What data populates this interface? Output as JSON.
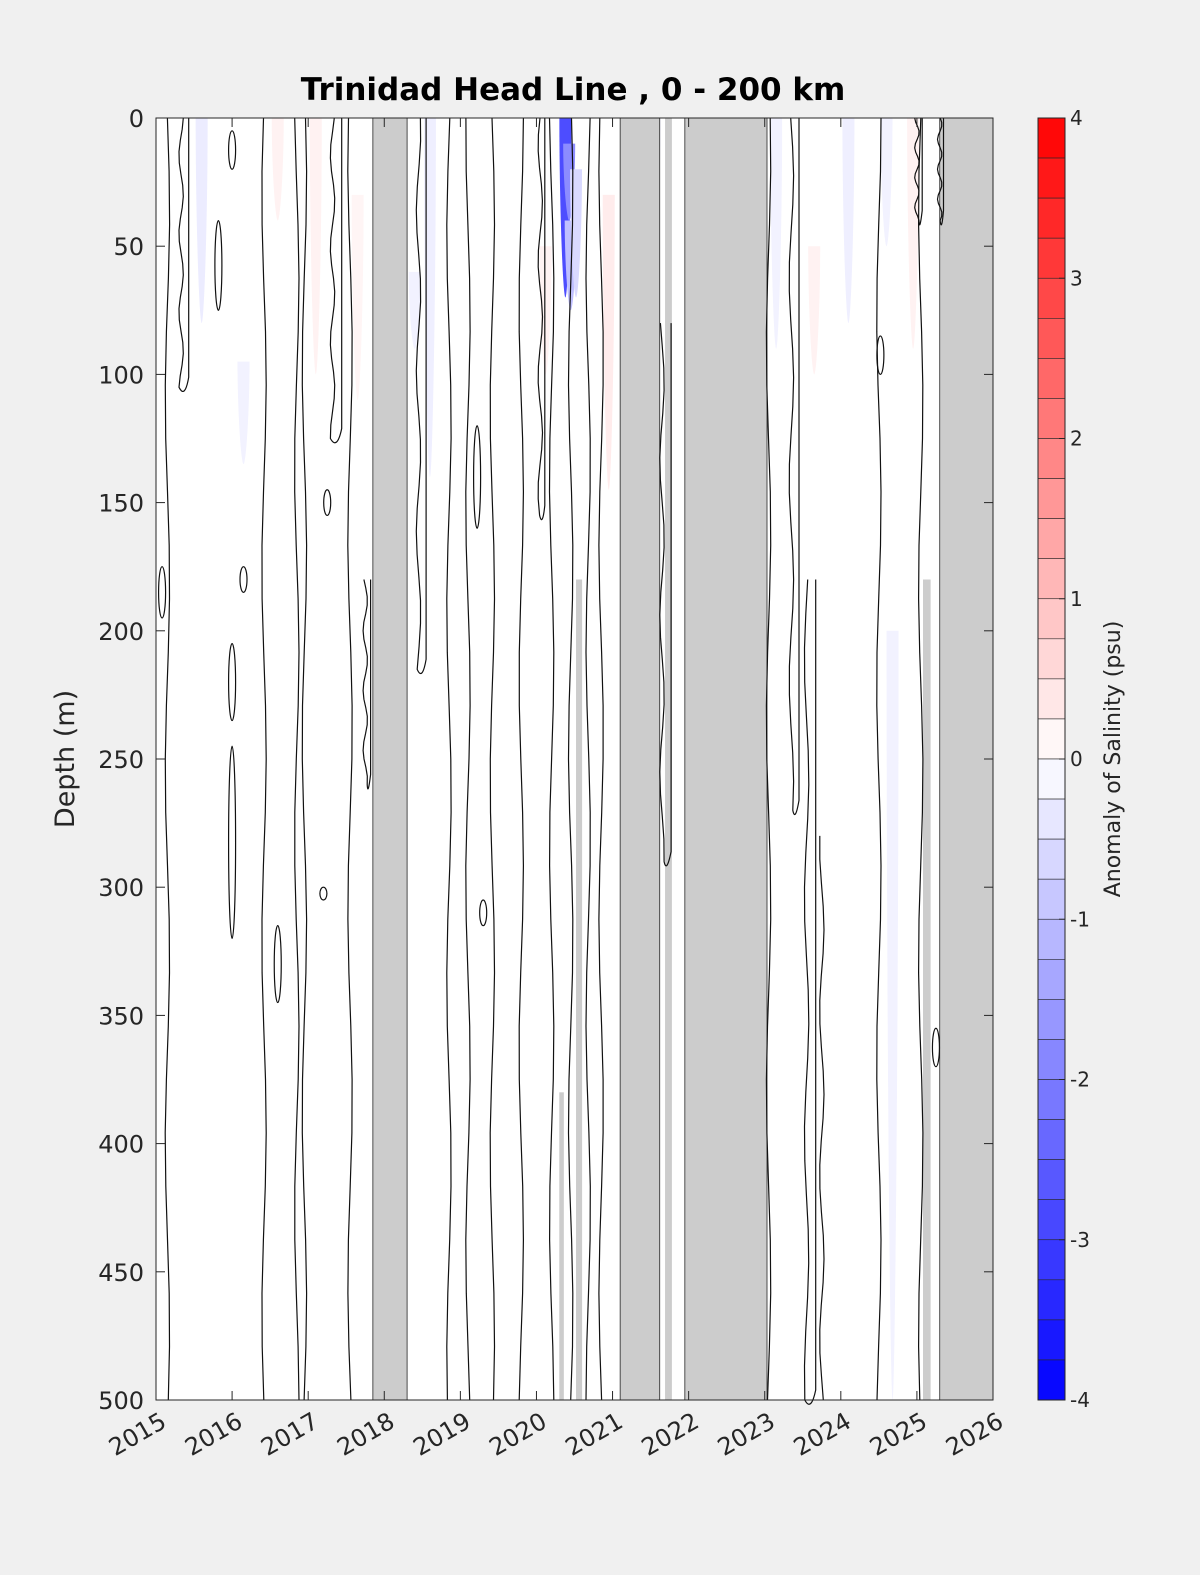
{
  "chart_data": {
    "type": "heatmap",
    "title": "Trinidad Head Line , 0 - 200 km",
    "ylabel": "Depth (m)",
    "xlabel": "",
    "colorbar_label": "Anomaly of Salinity (psu)",
    "xlim": [
      2015,
      2026
    ],
    "ylim": [
      0,
      500
    ],
    "y_reversed": true,
    "xticks": [
      2015,
      2016,
      2017,
      2018,
      2019,
      2020,
      2021,
      2022,
      2023,
      2024,
      2025,
      2026
    ],
    "xtick_labels": [
      "2015",
      "2016",
      "2017",
      "2018",
      "2019",
      "2020",
      "2021",
      "2022",
      "2023",
      "2024",
      "2025",
      "2026"
    ],
    "yticks": [
      0,
      50,
      100,
      150,
      200,
      250,
      300,
      350,
      400,
      450,
      500
    ],
    "ytick_labels": [
      "0",
      "50",
      "100",
      "150",
      "200",
      "250",
      "300",
      "350",
      "400",
      "450",
      "500"
    ],
    "clim": [
      -4,
      4
    ],
    "colorbar_ticks": [
      4,
      3,
      2,
      1,
      0,
      -1,
      -2,
      -3,
      -4
    ],
    "colorbar_tick_labels": [
      "4",
      "3",
      "2",
      "1",
      "0",
      "-1",
      "-2",
      "-3",
      "-4"
    ],
    "colorbar_levels": 32,
    "colormap": {
      "low": "#0000ff",
      "mid": "#ffffff",
      "high": "#ff0000"
    },
    "background_color": "#ffffff",
    "no_data_color": "#cccccc",
    "no_data_periods": [
      {
        "x0": 2017.85,
        "x1": 2018.3
      },
      {
        "x0": 2021.1,
        "x1": 2021.62
      },
      {
        "x0": 2021.95,
        "x1": 2023.03
      },
      {
        "x0": 2025.3,
        "x1": 2026.0
      }
    ],
    "no_data_strips": [
      {
        "x0": 2020.3,
        "x1": 2020.36,
        "y0": 380,
        "y1": 500
      },
      {
        "x0": 2020.52,
        "x1": 2020.6,
        "y0": 180,
        "y1": 500
      },
      {
        "x0": 2021.69,
        "x1": 2021.78,
        "y0": 0,
        "y1": 500
      },
      {
        "x0": 2025.08,
        "x1": 2025.18,
        "y0": 180,
        "y1": 500
      }
    ],
    "anomaly_patches": [
      {
        "x": 2020.38,
        "y0": 0,
        "y1": 70,
        "value": -2.8
      },
      {
        "x": 2020.43,
        "y0": 10,
        "y1": 40,
        "value": -1.8
      },
      {
        "x": 2020.45,
        "y0": 40,
        "y1": 75,
        "value": -1.0
      },
      {
        "x": 2020.52,
        "y0": 20,
        "y1": 70,
        "value": -0.6
      },
      {
        "x": 2020.95,
        "y0": 30,
        "y1": 145,
        "value": 0.3
      },
      {
        "x": 2020.12,
        "y0": 50,
        "y1": 100,
        "value": 0.2
      },
      {
        "x": 2015.6,
        "y0": 0,
        "y1": 80,
        "value": -0.3
      },
      {
        "x": 2016.15,
        "y0": 95,
        "y1": 135,
        "value": -0.2
      },
      {
        "x": 2016.6,
        "y0": 0,
        "y1": 40,
        "value": 0.2
      },
      {
        "x": 2017.1,
        "y0": 0,
        "y1": 100,
        "value": 0.2
      },
      {
        "x": 2017.65,
        "y0": 30,
        "y1": 110,
        "value": 0.15
      },
      {
        "x": 2018.4,
        "y0": 60,
        "y1": 90,
        "value": -0.2
      },
      {
        "x": 2018.6,
        "y0": 0,
        "y1": 140,
        "value": -0.25
      },
      {
        "x": 2021.55,
        "y0": 0,
        "y1": 60,
        "value": -0.3
      },
      {
        "x": 2023.15,
        "y0": 0,
        "y1": 90,
        "value": -0.2
      },
      {
        "x": 2023.65,
        "y0": 50,
        "y1": 100,
        "value": 0.2
      },
      {
        "x": 2024.1,
        "y0": 0,
        "y1": 80,
        "value": -0.25
      },
      {
        "x": 2024.6,
        "y0": 0,
        "y1": 50,
        "value": -0.2
      },
      {
        "x": 2024.95,
        "y0": 0,
        "y1": 90,
        "value": 0.2
      },
      {
        "x": 2024.68,
        "y0": 200,
        "y1": 500,
        "value": -0.2
      }
    ],
    "zero_contours": [
      {
        "x": 2015.15,
        "y0": 0,
        "y1": 500
      },
      {
        "x": 2015.33,
        "y0": 0,
        "y1": 105,
        "dx": 0.1
      },
      {
        "x": 2016.42,
        "y0": 0,
        "y1": 500
      },
      {
        "x": 2016.85,
        "y0": 0,
        "y1": 500
      },
      {
        "x": 2016.95,
        "y0": 0,
        "y1": 500
      },
      {
        "x": 2017.32,
        "y0": 0,
        "y1": 125,
        "dx": 0.12
      },
      {
        "x": 2017.55,
        "y0": 0,
        "y1": 500
      },
      {
        "x": 2017.75,
        "y0": 180,
        "y1": 260,
        "dx": 0.07
      },
      {
        "x": 2018.45,
        "y0": 0,
        "y1": 215,
        "dx": 0.1
      },
      {
        "x": 2018.85,
        "y0": 0,
        "y1": 500
      },
      {
        "x": 2019.1,
        "y0": 0,
        "y1": 500
      },
      {
        "x": 2019.42,
        "y0": 0,
        "y1": 500
      },
      {
        "x": 2019.8,
        "y0": 0,
        "y1": 500
      },
      {
        "x": 2020.05,
        "y0": 0,
        "y1": 155,
        "dx": 0.06
      },
      {
        "x": 2020.2,
        "y0": 0,
        "y1": 500
      },
      {
        "x": 2020.45,
        "y0": 0,
        "y1": 500
      },
      {
        "x": 2020.68,
        "y0": 0,
        "y1": 500
      },
      {
        "x": 2020.85,
        "y0": 0,
        "y1": 500
      },
      {
        "x": 2021.65,
        "y0": 80,
        "y1": 290,
        "dx": 0.12
      },
      {
        "x": 2023.05,
        "y0": 0,
        "y1": 500
      },
      {
        "x": 2023.55,
        "y0": 180,
        "y1": 500,
        "dx": 0.12
      },
      {
        "x": 2023.75,
        "y0": 280,
        "y1": 500
      },
      {
        "x": 2023.35,
        "y0": 0,
        "y1": 270,
        "dx": 0.1
      },
      {
        "x": 2024.5,
        "y0": 0,
        "y1": 500
      },
      {
        "x": 2025.05,
        "y0": 0,
        "y1": 500
      },
      {
        "x": 2025.0,
        "y0": 0,
        "y1": 40,
        "dx": 0.07
      },
      {
        "x": 2025.3,
        "y0": 0,
        "y1": 40,
        "dx": 0.05
      }
    ],
    "closed_contours": [
      {
        "x": 2016.0,
        "y0": 5,
        "y1": 20
      },
      {
        "x": 2016.0,
        "y0": 205,
        "y1": 235
      },
      {
        "x": 2016.0,
        "y0": 245,
        "y1": 320
      },
      {
        "x": 2015.08,
        "y0": 175,
        "y1": 195
      },
      {
        "x": 2015.82,
        "y0": 40,
        "y1": 75
      },
      {
        "x": 2016.15,
        "y0": 175,
        "y1": 185
      },
      {
        "x": 2016.6,
        "y0": 315,
        "y1": 345
      },
      {
        "x": 2017.25,
        "y0": 145,
        "y1": 155
      },
      {
        "x": 2017.2,
        "y0": 300,
        "y1": 305
      },
      {
        "x": 2019.22,
        "y0": 120,
        "y1": 160
      },
      {
        "x": 2019.3,
        "y0": 305,
        "y1": 315
      },
      {
        "x": 2024.52,
        "y0": 85,
        "y1": 100
      },
      {
        "x": 2025.25,
        "y0": 355,
        "y1": 370
      }
    ]
  }
}
